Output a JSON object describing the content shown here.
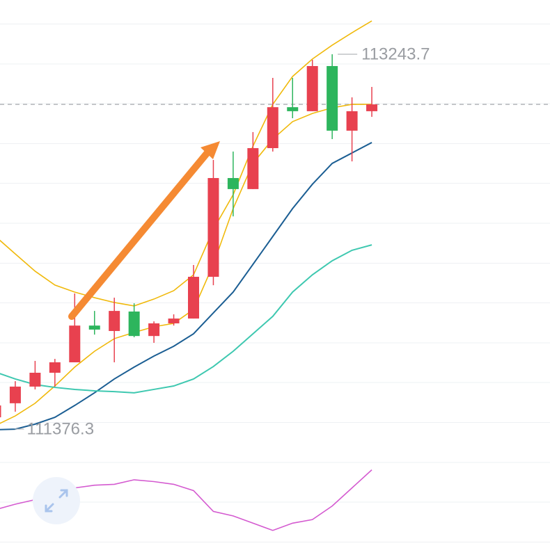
{
  "chart_data": {
    "type": "candlestick",
    "ylim": [
      111262,
      113514
    ],
    "up_color": "#e8414f",
    "down_color": "#2db55d",
    "open": [
      111435,
      111505,
      111588,
      111657,
      111709,
      111892,
      111865,
      111962,
      111840,
      111903,
      111927,
      112135,
      112627,
      112572,
      112776,
      112980,
      112960,
      113185,
      112863,
      112960
    ],
    "high": [
      111522,
      111615,
      111716,
      111726,
      112052,
      111965,
      112031,
      112003,
      111913,
      111948,
      112194,
      112717,
      112759,
      112856,
      113126,
      113126,
      113216,
      113243.7,
      113029,
      113081
    ],
    "low": [
      111376.3,
      111463,
      111574,
      111588,
      111709,
      111847,
      111709,
      111834,
      111806,
      111892,
      111927,
      112093,
      112436,
      112572,
      112759,
      112925,
      112960,
      112821,
      112710,
      112932
    ],
    "close": [
      111494,
      111588,
      111657,
      111709,
      111892,
      111872,
      111965,
      111840,
      111903,
      111927,
      112135,
      112627,
      112572,
      112776,
      112980,
      112960,
      113185,
      112863,
      112960,
      112994
    ],
    "max_label": 113243.7,
    "min_label": 111376.3,
    "lines": [
      {
        "color": "#f0b90b",
        "values": [
          112336,
          112249,
          112163,
          112094,
          112059,
          112031,
          112007,
          111990,
          112024,
          112066,
          112145,
          112371,
          112544,
          112786,
          112994,
          113133,
          113220,
          113289,
          113351,
          113410
        ]
      },
      {
        "color": "#f0b90b",
        "values": [
          111394,
          111442,
          111505,
          111591,
          111685,
          111764,
          111827,
          111858,
          111886,
          111903,
          111972,
          112197,
          112475,
          112700,
          112821,
          112908,
          112949,
          112977,
          112994,
          112994
        ]
      },
      {
        "color": "#1b5e93",
        "values": [
          111373,
          111376,
          111401,
          111435,
          111494,
          111557,
          111626,
          111685,
          111740,
          111789,
          111851,
          111955,
          112059,
          112197,
          112336,
          112475,
          112596,
          112700,
          112752,
          112804
        ]
      },
      {
        "color": "#3ec8b0",
        "values": [
          111660,
          111626,
          111598,
          111584,
          111574,
          111567,
          111563,
          111557,
          111574,
          111591,
          111626,
          111688,
          111764,
          111851,
          111938,
          112059,
          112145,
          112215,
          112267,
          112294
        ]
      }
    ],
    "indicator": {
      "type": "line",
      "color": "#d45ad0",
      "ylim": [
        0,
        100
      ],
      "values": [
        44,
        50,
        55,
        62,
        68,
        71,
        72,
        77,
        75,
        72,
        65,
        42,
        37,
        29,
        21,
        29,
        33,
        48,
        68,
        88
      ]
    }
  }
}
